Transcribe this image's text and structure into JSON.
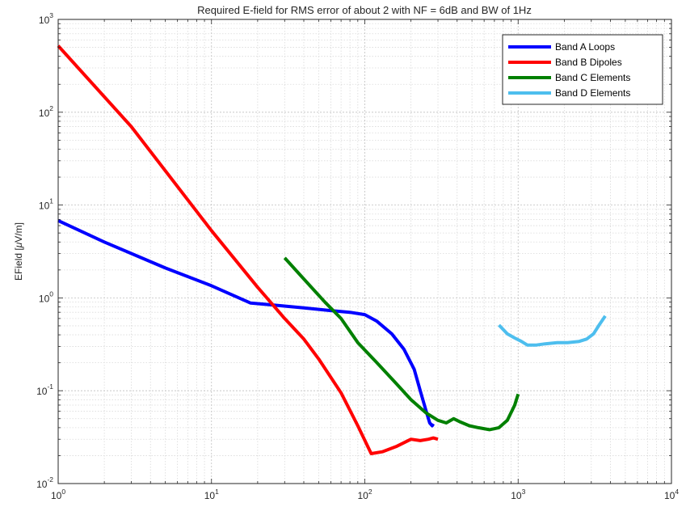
{
  "chart_data": {
    "type": "line",
    "title": "Required E-field for RMS error of about 2 with NF = 6dB and BW of 1Hz",
    "xlabel": "",
    "ylabel_prefix": "EField [",
    "ylabel_mu": "μ",
    "ylabel_suffix": "V/m]",
    "xscale": "log",
    "yscale": "log",
    "xlim": [
      1,
      10000
    ],
    "ylim": [
      0.01,
      1000
    ],
    "grid": true,
    "minor_grid": true,
    "legend_position": "top-right",
    "x_ticks": [
      {
        "base": "10",
        "exp": "0"
      },
      {
        "base": "10",
        "exp": "1"
      },
      {
        "base": "10",
        "exp": "2"
      },
      {
        "base": "10",
        "exp": "3"
      },
      {
        "base": "10",
        "exp": "4"
      }
    ],
    "y_ticks": [
      {
        "label": "10",
        "exp": "-2",
        "value": 0.01
      },
      {
        "label": "10",
        "exp": "-1",
        "value": 0.1
      },
      {
        "label": "10",
        "exp": "0",
        "value": 1
      },
      {
        "label": "10",
        "exp": "1",
        "value": 10
      },
      {
        "label": "10",
        "exp": "2",
        "value": 100
      },
      {
        "label": "10",
        "exp": "3",
        "value": 1000
      }
    ],
    "series": [
      {
        "name": "Band A Loops",
        "color": "#0000ff",
        "points": [
          [
            1,
            6.8
          ],
          [
            2,
            4.0
          ],
          [
            5,
            2.1
          ],
          [
            10,
            1.35
          ],
          [
            18,
            0.88
          ],
          [
            25,
            0.84
          ],
          [
            40,
            0.78
          ],
          [
            60,
            0.73
          ],
          [
            80,
            0.7
          ],
          [
            100,
            0.66
          ],
          [
            120,
            0.56
          ],
          [
            150,
            0.41
          ],
          [
            180,
            0.28
          ],
          [
            210,
            0.17
          ],
          [
            230,
            0.1
          ],
          [
            250,
            0.062
          ],
          [
            265,
            0.045
          ],
          [
            275,
            0.042
          ],
          [
            280,
            0.044
          ]
        ]
      },
      {
        "name": "Band B Dipoles",
        "color": "#ff0000",
        "points": [
          [
            1,
            520
          ],
          [
            3,
            70
          ],
          [
            10,
            5.3
          ],
          [
            20,
            1.3
          ],
          [
            30,
            0.6
          ],
          [
            40,
            0.36
          ],
          [
            50,
            0.22
          ],
          [
            70,
            0.095
          ],
          [
            90,
            0.042
          ],
          [
            110,
            0.021
          ],
          [
            130,
            0.022
          ],
          [
            160,
            0.025
          ],
          [
            200,
            0.03
          ],
          [
            230,
            0.029
          ],
          [
            260,
            0.03
          ],
          [
            280,
            0.031
          ],
          [
            300,
            0.03
          ]
        ]
      },
      {
        "name": "Band C Elements",
        "color": "#008000",
        "points": [
          [
            30,
            2.7
          ],
          [
            40,
            1.6
          ],
          [
            55,
            0.9
          ],
          [
            70,
            0.6
          ],
          [
            90,
            0.33
          ],
          [
            120,
            0.2
          ],
          [
            160,
            0.12
          ],
          [
            200,
            0.08
          ],
          [
            250,
            0.058
          ],
          [
            300,
            0.048
          ],
          [
            340,
            0.045
          ],
          [
            380,
            0.05
          ],
          [
            420,
            0.046
          ],
          [
            480,
            0.042
          ],
          [
            550,
            0.04
          ],
          [
            650,
            0.038
          ],
          [
            750,
            0.04
          ],
          [
            850,
            0.048
          ],
          [
            950,
            0.07
          ],
          [
            1000,
            0.092
          ]
        ]
      },
      {
        "name": "Band D Elements",
        "color": "#4dbeee",
        "points": [
          [
            750,
            0.51
          ],
          [
            850,
            0.41
          ],
          [
            950,
            0.37
          ],
          [
            1050,
            0.34
          ],
          [
            1150,
            0.31
          ],
          [
            1300,
            0.31
          ],
          [
            1500,
            0.32
          ],
          [
            1800,
            0.33
          ],
          [
            2100,
            0.33
          ],
          [
            2500,
            0.34
          ],
          [
            2800,
            0.36
          ],
          [
            3100,
            0.41
          ],
          [
            3400,
            0.52
          ],
          [
            3700,
            0.64
          ]
        ]
      }
    ]
  }
}
